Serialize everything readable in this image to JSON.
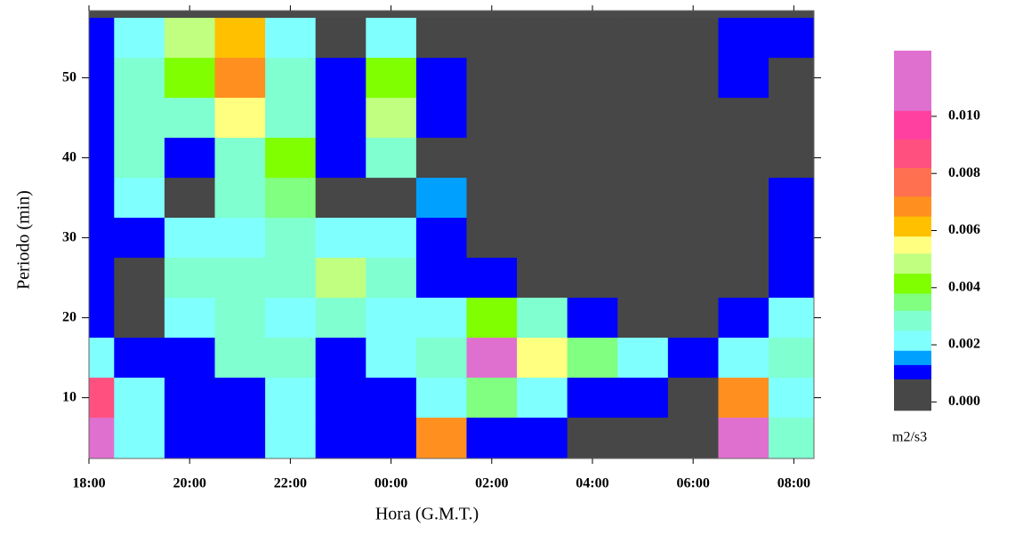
{
  "chart_data": {
    "type": "heatmap",
    "xlabel": "Hora (G.M.T.)",
    "ylabel": "Periodo  (min)",
    "colorbar_label": "m2/s3",
    "background": "#4a4a4a",
    "xlim": [
      0,
      14.4
    ],
    "ylim": [
      2.4,
      58.4
    ],
    "xticks": [
      {
        "value": 0,
        "label": "18:00"
      },
      {
        "value": 2,
        "label": "20:00"
      },
      {
        "value": 4,
        "label": "22:00"
      },
      {
        "value": 6,
        "label": "00:00"
      },
      {
        "value": 8,
        "label": "02:00"
      },
      {
        "value": 10,
        "label": "04:00"
      },
      {
        "value": 12,
        "label": "06:00"
      },
      {
        "value": 14,
        "label": "08:00"
      }
    ],
    "yticks": [
      10,
      20,
      30,
      40,
      50
    ],
    "x": [
      0,
      1,
      2,
      3,
      4,
      5,
      6,
      7,
      8,
      9,
      10,
      11,
      12,
      13,
      14
    ],
    "y": [
      55,
      50,
      45,
      40,
      35,
      30,
      25,
      20,
      15,
      10,
      5
    ],
    "z": [
      [
        0.001,
        0.002,
        0.005,
        0.006,
        0.002,
        0,
        0.002,
        0,
        0,
        0,
        0,
        0,
        0,
        0.0008,
        0.0008
      ],
      [
        0.001,
        0.003,
        0.004,
        0.007,
        0.003,
        0.001,
        0.004,
        0.001,
        0,
        0,
        0,
        0,
        0,
        0.0008,
        0
      ],
      [
        0.001,
        0.003,
        0.003,
        0.0055,
        0.003,
        0.001,
        0.0045,
        0.0008,
        0,
        0,
        0,
        0,
        0,
        0,
        0
      ],
      [
        0.001,
        0.0025,
        0.001,
        0.003,
        0.004,
        0.0008,
        0.003,
        0.0005,
        0,
        0,
        0,
        0,
        0,
        0,
        0
      ],
      [
        0.001,
        0.002,
        0.0006,
        0.0025,
        0.0035,
        0.0006,
        0.0006,
        0.0015,
        0,
        0,
        0,
        0,
        0,
        0,
        0.0008
      ],
      [
        0.001,
        0.0008,
        0.002,
        0.002,
        0.003,
        0.002,
        0.002,
        0.001,
        0,
        0,
        0,
        0,
        0,
        0,
        0.0008
      ],
      [
        0.001,
        0.0003,
        0.003,
        0.0025,
        0.003,
        0.0045,
        0.003,
        0.001,
        0.0008,
        0,
        0,
        0,
        0,
        0,
        0.001
      ],
      [
        0.0008,
        0.0003,
        0.002,
        0.003,
        0.002,
        0.003,
        0.002,
        0.002,
        0.004,
        0.003,
        0.001,
        0,
        0,
        0.0008,
        0.002
      ],
      [
        0.002,
        0.001,
        0.001,
        0.0025,
        0.003,
        0.001,
        0.002,
        0.003,
        0.012,
        0.0055,
        0.0035,
        0.002,
        0.0008,
        0.002,
        0.003
      ],
      [
        0.009,
        0.002,
        0.001,
        0.001,
        0.002,
        0.001,
        0.001,
        0.002,
        0.0035,
        0.002,
        0.001,
        0.001,
        0,
        0.007,
        0.002
      ],
      [
        0.011,
        0.002,
        0.001,
        0.001,
        0.002,
        0.001,
        0.001,
        0.007,
        0.001,
        0.0008,
        0,
        0,
        0,
        0.011,
        0.003
      ]
    ],
    "colorbar": {
      "levels": [
        -0.0003,
        0.0008,
        0.0013,
        0.0018,
        0.0025,
        0.0032,
        0.0038,
        0.0045,
        0.0052,
        0.0058,
        0.0065,
        0.0072,
        0.0082,
        0.0092,
        0.0102,
        0.0123
      ],
      "colors": [
        "#474747",
        "#0000ff",
        "#00a0ff",
        "#80ffff",
        "#80ffd0",
        "#80ff80",
        "#80ff00",
        "#c0ff80",
        "#ffff80",
        "#ffc000",
        "#ff9020",
        "#ff7050",
        "#ff5080",
        "#ff40a0",
        "#e070d0"
      ],
      "ticks": [
        {
          "value": 0,
          "label": "0.000"
        },
        {
          "value": 0.002,
          "label": "0.002"
        },
        {
          "value": 0.004,
          "label": "0.004"
        },
        {
          "value": 0.006,
          "label": "0.006"
        },
        {
          "value": 0.008,
          "label": "0.008"
        },
        {
          "value": 0.01,
          "label": "0.010"
        }
      ]
    }
  }
}
